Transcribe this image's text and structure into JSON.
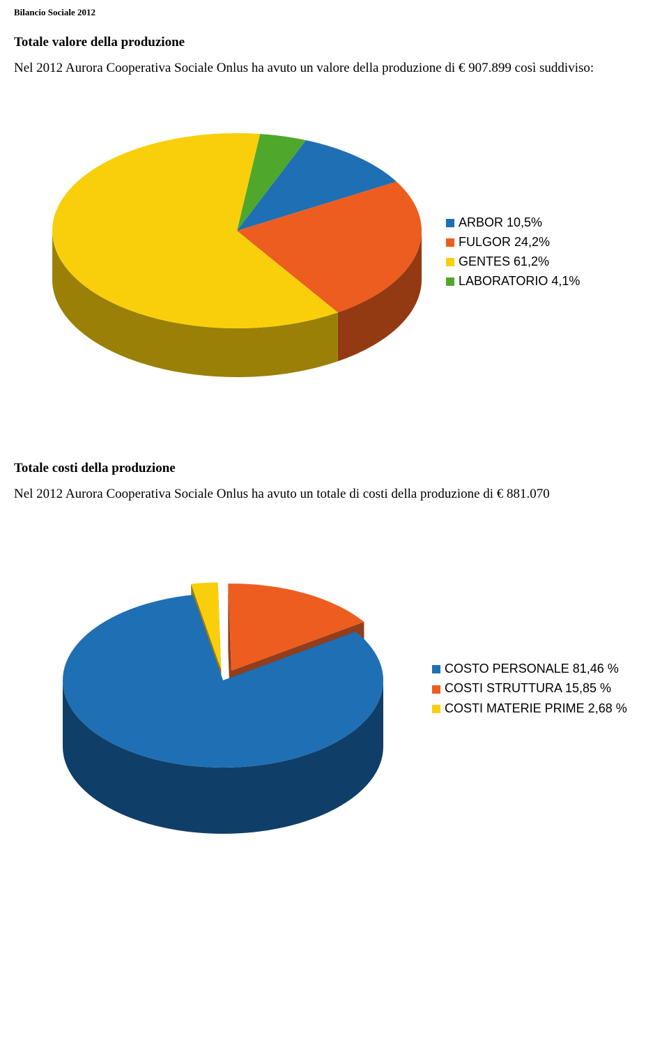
{
  "header": "Bilancio Sociale 2012",
  "section1": {
    "title": "Totale valore della produzione",
    "text": "Nel 2012 Aurora Cooperativa Sociale Onlus ha avuto un valore della produzione di € 907.899 così suddiviso:",
    "chart": {
      "type": "pie-3d",
      "background_color": "#ffffff",
      "slices": [
        {
          "label": "ARBOR 10,5%",
          "value": 10.5,
          "color": "#1f6fb4"
        },
        {
          "label": " FULGOR 24,2%",
          "value": 24.2,
          "color": "#ed5d1f"
        },
        {
          "label": "GENTES 61,2%",
          "value": 61.2,
          "color": "#f9cf0c"
        },
        {
          "label": "LABORATORIO 4,1%",
          "value": 4.1,
          "color": "#4fa82c"
        }
      ],
      "legend_fontsize": 18,
      "legend_font": "Arial",
      "legend_position": "right-middle"
    }
  },
  "section2": {
    "title": "Totale costi della produzione",
    "text": "Nel 2012 Aurora Cooperativa Sociale Onlus ha avuto un totale di costi della produzione di € 881.070",
    "chart": {
      "type": "pie-3d-exploded",
      "background_color": "#ffffff",
      "slices": [
        {
          "label": "COSTO PERSONALE 81,46 %",
          "value": 81.46,
          "color": "#1f6fb4",
          "dark": "#0f3f68"
        },
        {
          "label": "COSTI STRUTTURA 15,85 %",
          "value": 15.85,
          "color": "#ed5d1f",
          "dark": "#8c3310"
        },
        {
          "label": "COSTI MATERIE PRIME 2,68 %",
          "value": 2.68,
          "color": "#f9cf0c",
          "dark": "#8f7606"
        }
      ],
      "legend_fontsize": 18,
      "legend_font": "Arial",
      "legend_position": "right-middle"
    }
  }
}
